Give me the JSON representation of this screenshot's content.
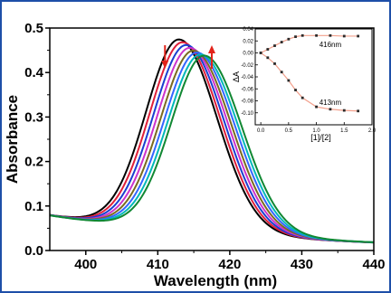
{
  "colors": {
    "border": "#1e4fa8",
    "arrow": "#e2231a",
    "inset_line": "#f2a08c",
    "inset_marker": "#2a2a2a"
  },
  "chart_data": [
    {
      "type": "line",
      "xlabel": "Wavelength (nm)",
      "ylabel": "Absorbance",
      "xlim": [
        395,
        440
      ],
      "ylim": [
        0.0,
        0.5
      ],
      "xticks": [
        400,
        410,
        420,
        430,
        440
      ],
      "yticks": [
        0.0,
        0.1,
        0.2,
        0.3,
        0.4,
        0.5
      ],
      "series": [
        {
          "color": "#000000",
          "peak_x": 413.0,
          "peak_y": 0.452
        },
        {
          "color": "#e0203a",
          "peak_x": 413.5,
          "peak_y": 0.446
        },
        {
          "color": "#1a3fd0",
          "peak_x": 414.0,
          "peak_y": 0.44
        },
        {
          "color": "#cc33cc",
          "peak_x": 414.5,
          "peak_y": 0.434
        },
        {
          "color": "#7a6a20",
          "peak_x": 415.0,
          "peak_y": 0.428
        },
        {
          "color": "#3366ff",
          "peak_x": 415.5,
          "peak_y": 0.424
        },
        {
          "color": "#00b8b8",
          "peak_x": 416.0,
          "peak_y": 0.42
        },
        {
          "color": "#118833",
          "peak_x": 416.5,
          "peak_y": 0.418
        }
      ],
      "annotations": {
        "arrow_down_x": 411,
        "arrow_up_x": 417.5
      }
    },
    {
      "type": "scatter",
      "xlabel": "[1]/[2]",
      "ylabel": "ΔA",
      "xlim": [
        -0.1,
        2.0
      ],
      "ylim": [
        -0.12,
        0.04
      ],
      "xticks": [
        "0.0",
        "0.5",
        "1.0",
        "1.5",
        "2.0"
      ],
      "yticks": [
        "0.04",
        "0.02",
        "0.00",
        "-0.02",
        "-0.04",
        "-0.06",
        "-0.08",
        "-0.10"
      ],
      "series": [
        {
          "name": "416nm",
          "x": [
            0.0,
            0.125,
            0.25,
            0.375,
            0.5,
            0.625,
            0.75,
            1.0,
            1.25,
            1.5,
            1.75
          ],
          "y": [
            0.0,
            0.006,
            0.012,
            0.018,
            0.023,
            0.027,
            0.029,
            0.029,
            0.029,
            0.028,
            0.028
          ]
        },
        {
          "name": "413nm",
          "x": [
            0.0,
            0.125,
            0.25,
            0.375,
            0.5,
            0.625,
            0.75,
            1.0,
            1.25,
            1.5,
            1.75
          ],
          "y": [
            0.0,
            -0.008,
            -0.018,
            -0.032,
            -0.046,
            -0.062,
            -0.075,
            -0.09,
            -0.094,
            -0.096,
            -0.097
          ]
        }
      ]
    }
  ]
}
